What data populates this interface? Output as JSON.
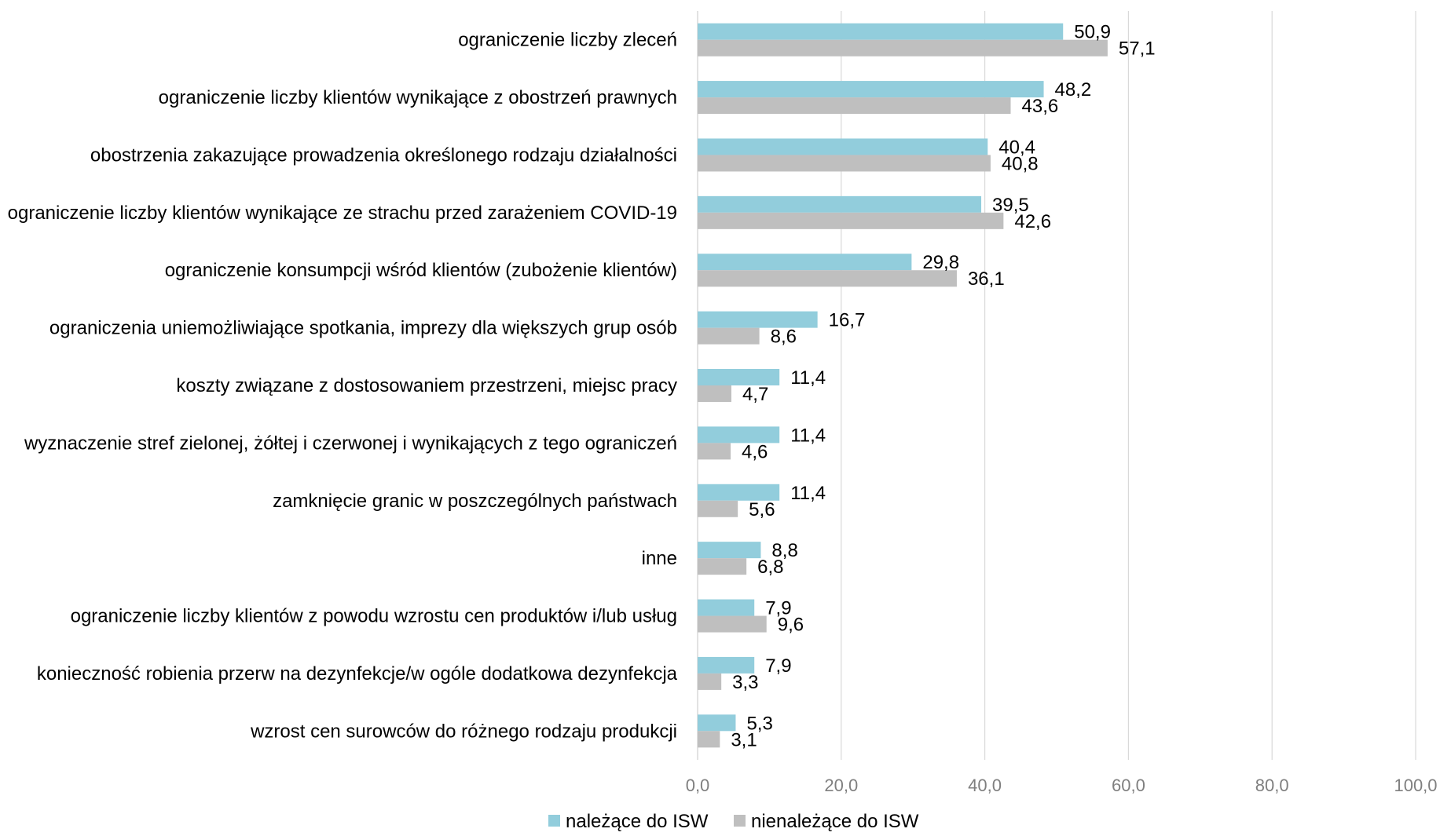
{
  "chart_data": {
    "type": "bar",
    "orientation": "horizontal",
    "categories": [
      "ograniczenie liczby zleceń",
      "ograniczenie liczby klientów wynikające z obostrzeń prawnych",
      "obostrzenia zakazujące prowadzenia określonego rodzaju działalności",
      "ograniczenie liczby klientów wynikające ze strachu przed zarażeniem COVID-19",
      "ograniczenie konsumpcji wśród klientów (zubożenie klientów)",
      "ograniczenia uniemożliwiające spotkania, imprezy dla większych grup osób",
      "koszty związane z dostosowaniem przestrzeni, miejsc pracy",
      "wyznaczenie stref zielonej, żółtej i czerwonej i wynikających z tego ograniczeń",
      "zamknięcie granic w poszczególnych państwach",
      "inne",
      "ograniczenie liczby klientów z powodu wzrostu cen produktów i/lub usług",
      "konieczność robienia przerw na dezynfekcje/w ogóle dodatkowa dezynfekcja",
      "wzrost cen surowców do różnego rodzaju produkcji"
    ],
    "series": [
      {
        "name": "należące do ISW",
        "color": "#92cddc",
        "values": [
          50.9,
          48.2,
          40.4,
          39.5,
          29.8,
          16.7,
          11.4,
          11.4,
          11.4,
          8.8,
          7.9,
          7.9,
          5.3
        ],
        "labels": [
          "50,9",
          "48,2",
          "40,4",
          "39,5",
          "29,8",
          "16,7",
          "11,4",
          "11,4",
          "11,4",
          "8,8",
          "7,9",
          "7,9",
          "5,3"
        ]
      },
      {
        "name": "nienależące do ISW",
        "color": "#bfbfbf",
        "values": [
          57.1,
          43.6,
          40.8,
          42.6,
          36.1,
          8.6,
          4.7,
          4.6,
          5.6,
          6.8,
          9.6,
          3.3,
          3.1
        ],
        "labels": [
          "57,1",
          "43,6",
          "40,8",
          "42,6",
          "36,1",
          "8,6",
          "4,7",
          "4,6",
          "5,6",
          "6,8",
          "9,6",
          "3,3",
          "3,1"
        ]
      }
    ],
    "xlim": [
      0,
      100
    ],
    "xticks": [
      "0,0",
      "20,0",
      "40,0",
      "60,0",
      "80,0",
      "100,0"
    ],
    "grid": true,
    "legend_position": "bottom",
    "colors": {
      "gridline": "#d9d9d9",
      "tick_text": "#7f7f7f"
    }
  }
}
